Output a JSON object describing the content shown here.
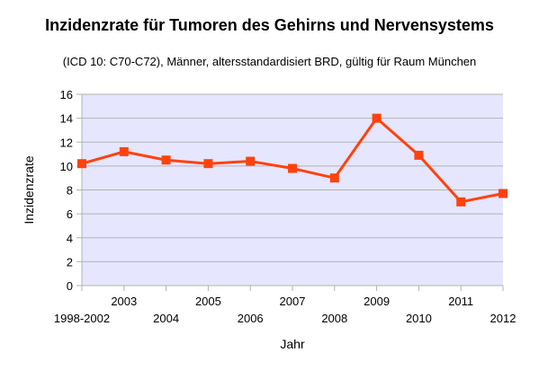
{
  "chart_data": {
    "type": "line",
    "title": "Inzidenzrate für Tumoren des Gehirns und Nervensystems",
    "subtitle": "(ICD 10: C70-C72), Männer, altersstandardisiert BRD, gültig für Raum München",
    "xlabel": "Jahr",
    "ylabel": "Inzidenzrate",
    "categories": [
      "1998-2002",
      "2003",
      "2004",
      "2005",
      "2006",
      "2007",
      "2008",
      "2009",
      "2010",
      "2011",
      "2012"
    ],
    "series": [
      {
        "values": [
          10.2,
          11.2,
          10.5,
          10.2,
          10.4,
          9.8,
          9.0,
          14.0,
          10.9,
          7.0,
          7.7
        ],
        "color": "#ff420e"
      }
    ],
    "ylim": [
      0,
      16
    ],
    "yticks": [
      "0",
      "2",
      "4",
      "6",
      "8",
      "10",
      "12",
      "14",
      "16"
    ],
    "grid": true,
    "plot_background": "#e6e6ff",
    "gridline_color": "#b3b3b3",
    "legend": "none"
  }
}
